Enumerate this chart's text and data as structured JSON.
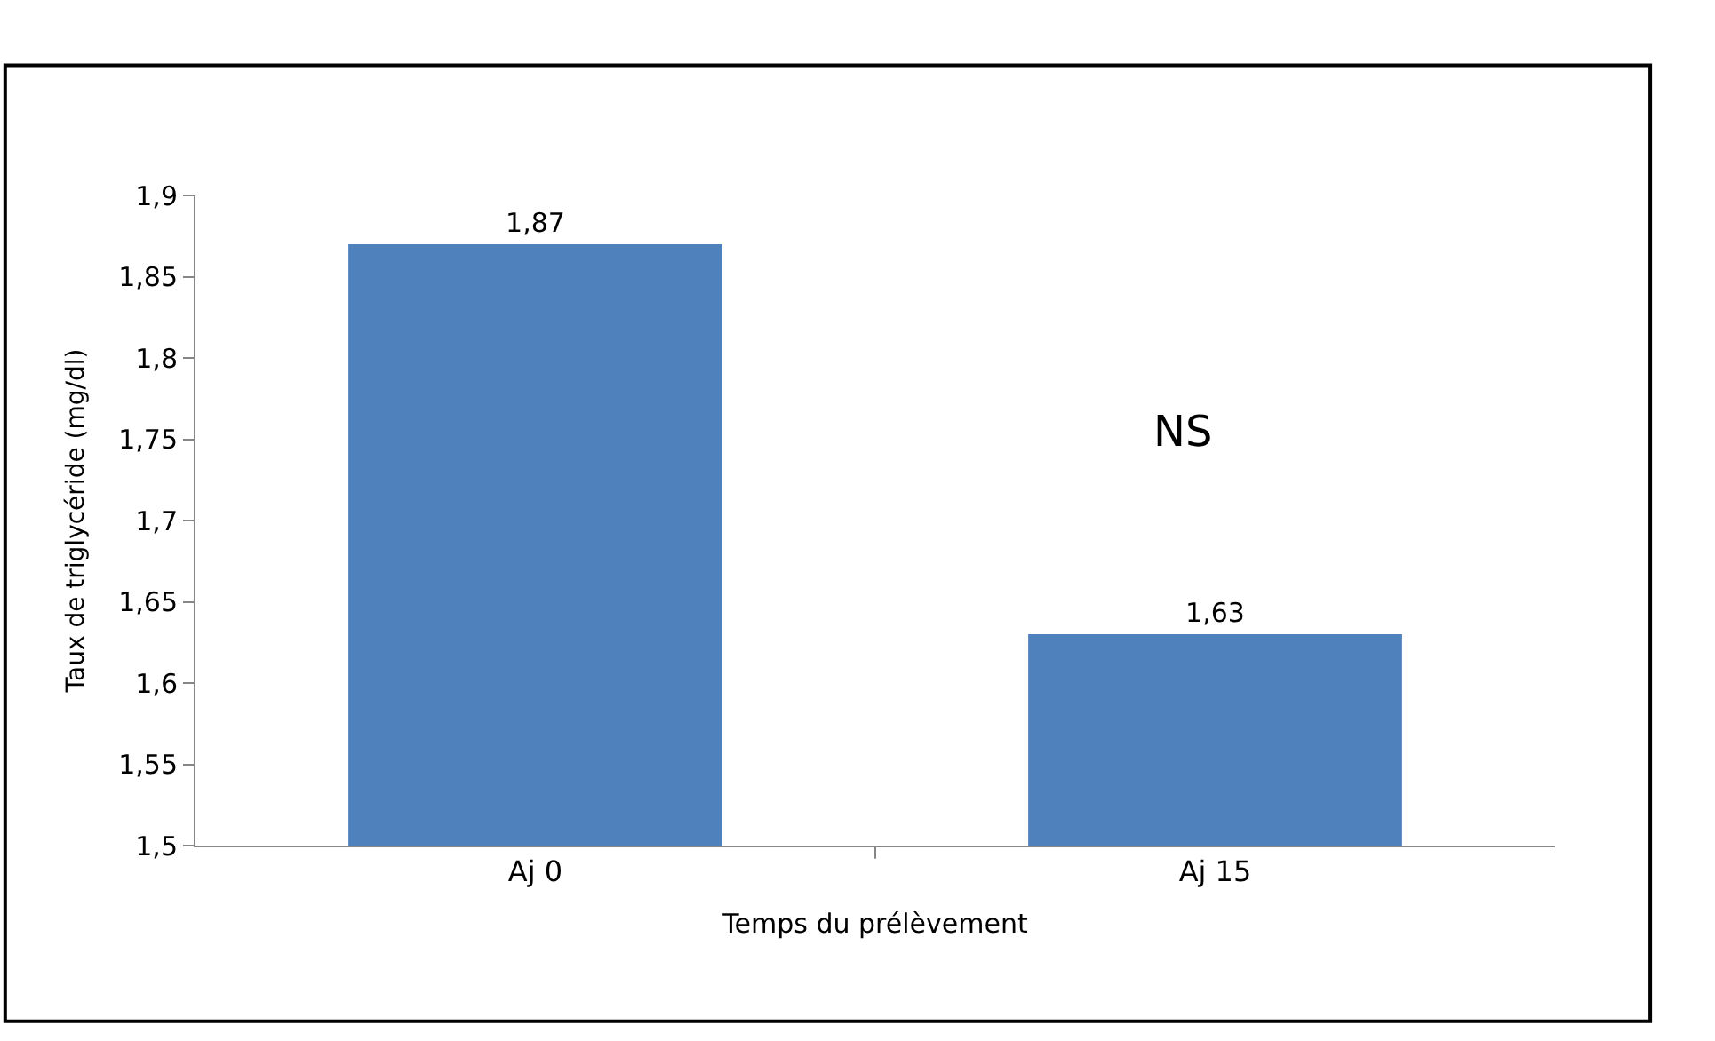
{
  "chart_data": {
    "type": "bar",
    "xlabel": "Temps du prélèvement",
    "ylabel": "Taux de triglycéride (mg/dl)",
    "categories": [
      "Aj 0",
      "Aj 15"
    ],
    "values": [
      1.87,
      1.63
    ],
    "value_labels": [
      "1,87",
      "1,63"
    ],
    "color": "#4f81bd",
    "ylim": [
      1.5,
      1.9
    ],
    "yticks": [
      {
        "value": 1.5,
        "label": "1,5"
      },
      {
        "value": 1.55,
        "label": "1,55"
      },
      {
        "value": 1.6,
        "label": "1,6"
      },
      {
        "value": 1.65,
        "label": "1,65"
      },
      {
        "value": 1.7,
        "label": "1,7"
      },
      {
        "value": 1.75,
        "label": "1,75"
      },
      {
        "value": 1.8,
        "label": "1,8"
      },
      {
        "value": 1.85,
        "label": "1,85"
      },
      {
        "value": 1.9,
        "label": "1,9"
      }
    ],
    "annotations": [
      "NS"
    ],
    "legend": false
  }
}
